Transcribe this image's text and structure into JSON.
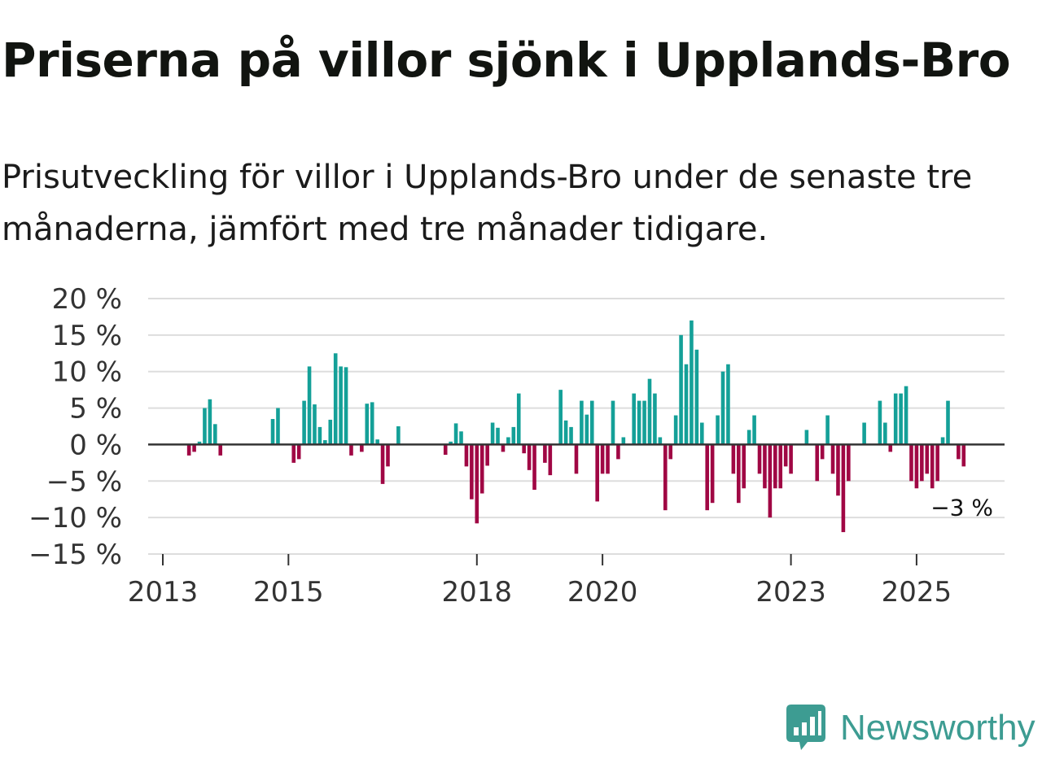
{
  "header": {
    "title": "Priserna på villor sjönk i Upplands-Bro",
    "subtitle": "Prisutveckling för villor i Upplands-Bro under de senaste tre månaderna, jämfört med tre månader tidigare."
  },
  "colors": {
    "positive": "#14a098",
    "negative": "#a00744",
    "grid": "#dddddd",
    "zero_line": "#333333",
    "brand": "#3d9c92"
  },
  "chart_data": {
    "type": "bar",
    "title": "Priserna på villor sjönk i Upplands-Bro",
    "xlabel": "",
    "ylabel": "",
    "ylim": [
      -15,
      20
    ],
    "y_ticks": [
      {
        "value": 20,
        "label": "20 %"
      },
      {
        "value": 15,
        "label": "15 %"
      },
      {
        "value": 10,
        "label": "10 %"
      },
      {
        "value": 5,
        "label": "5 %"
      },
      {
        "value": 0,
        "label": "0 %"
      },
      {
        "value": -5,
        "label": "−5 %"
      },
      {
        "value": -10,
        "label": "−10 %"
      },
      {
        "value": -15,
        "label": "−15 %"
      }
    ],
    "x_range_months": [
      0,
      164
    ],
    "x_ticks": [
      {
        "month": 0,
        "label": "2013"
      },
      {
        "month": 24,
        "label": "2015"
      },
      {
        "month": 60,
        "label": "2018"
      },
      {
        "month": 84,
        "label": "2020"
      },
      {
        "month": 120,
        "label": "2023"
      },
      {
        "month": 144,
        "label": "2025"
      }
    ],
    "x_unit": "months since Jan 2013",
    "values": [
      {
        "m": 5,
        "v": -1.5
      },
      {
        "m": 6,
        "v": -1.0
      },
      {
        "m": 7,
        "v": 0.4
      },
      {
        "m": 8,
        "v": 5.0
      },
      {
        "m": 9,
        "v": 6.2
      },
      {
        "m": 10,
        "v": 2.8
      },
      {
        "m": 11,
        "v": -1.5
      },
      {
        "m": 21,
        "v": 3.5
      },
      {
        "m": 22,
        "v": 5.0
      },
      {
        "m": 25,
        "v": -2.5
      },
      {
        "m": 26,
        "v": -2.0
      },
      {
        "m": 27,
        "v": 6.0
      },
      {
        "m": 28,
        "v": 10.7
      },
      {
        "m": 29,
        "v": 5.5
      },
      {
        "m": 30,
        "v": 2.4
      },
      {
        "m": 31,
        "v": 0.6
      },
      {
        "m": 32,
        "v": 3.4
      },
      {
        "m": 33,
        "v": 12.5
      },
      {
        "m": 34,
        "v": 10.7
      },
      {
        "m": 35,
        "v": 10.6
      },
      {
        "m": 36,
        "v": -1.5
      },
      {
        "m": 38,
        "v": -1.0
      },
      {
        "m": 39,
        "v": 5.6
      },
      {
        "m": 40,
        "v": 5.8
      },
      {
        "m": 41,
        "v": 0.7
      },
      {
        "m": 42,
        "v": -5.4
      },
      {
        "m": 43,
        "v": -3.0
      },
      {
        "m": 45,
        "v": 2.5
      },
      {
        "m": 54,
        "v": -1.4
      },
      {
        "m": 55,
        "v": 0.4
      },
      {
        "m": 56,
        "v": 2.9
      },
      {
        "m": 57,
        "v": 1.8
      },
      {
        "m": 58,
        "v": -3.0
      },
      {
        "m": 59,
        "v": -7.5
      },
      {
        "m": 60,
        "v": -10.8
      },
      {
        "m": 61,
        "v": -6.7
      },
      {
        "m": 62,
        "v": -2.9
      },
      {
        "m": 63,
        "v": 3.0
      },
      {
        "m": 64,
        "v": 2.3
      },
      {
        "m": 65,
        "v": -1.0
      },
      {
        "m": 66,
        "v": 1.0
      },
      {
        "m": 67,
        "v": 2.4
      },
      {
        "m": 68,
        "v": 7.0
      },
      {
        "m": 69,
        "v": -1.2
      },
      {
        "m": 70,
        "v": -3.5
      },
      {
        "m": 71,
        "v": -6.2
      },
      {
        "m": 73,
        "v": -2.5
      },
      {
        "m": 74,
        "v": -4.2
      },
      {
        "m": 76,
        "v": 7.5
      },
      {
        "m": 77,
        "v": 3.3
      },
      {
        "m": 78,
        "v": 2.4
      },
      {
        "m": 79,
        "v": -4.0
      },
      {
        "m": 80,
        "v": 6.0
      },
      {
        "m": 81,
        "v": 4.1
      },
      {
        "m": 82,
        "v": 6.0
      },
      {
        "m": 83,
        "v": -7.8
      },
      {
        "m": 84,
        "v": -4.0
      },
      {
        "m": 85,
        "v": -4.0
      },
      {
        "m": 86,
        "v": 6.0
      },
      {
        "m": 87,
        "v": -2.0
      },
      {
        "m": 88,
        "v": 1.0
      },
      {
        "m": 90,
        "v": 7.0
      },
      {
        "m": 91,
        "v": 6.0
      },
      {
        "m": 92,
        "v": 6.0
      },
      {
        "m": 93,
        "v": 9.0
      },
      {
        "m": 94,
        "v": 7.0
      },
      {
        "m": 95,
        "v": 1.0
      },
      {
        "m": 96,
        "v": -9.0
      },
      {
        "m": 97,
        "v": -2.0
      },
      {
        "m": 98,
        "v": 4.0
      },
      {
        "m": 99,
        "v": 15.0
      },
      {
        "m": 100,
        "v": 11.0
      },
      {
        "m": 101,
        "v": 17.0
      },
      {
        "m": 102,
        "v": 13.0
      },
      {
        "m": 103,
        "v": 3.0
      },
      {
        "m": 104,
        "v": -9.0
      },
      {
        "m": 105,
        "v": -8.0
      },
      {
        "m": 106,
        "v": 4.0
      },
      {
        "m": 107,
        "v": 10.0
      },
      {
        "m": 108,
        "v": 11.0
      },
      {
        "m": 109,
        "v": -4.0
      },
      {
        "m": 110,
        "v": -8.0
      },
      {
        "m": 111,
        "v": -6.0
      },
      {
        "m": 112,
        "v": 2.0
      },
      {
        "m": 113,
        "v": 4.0
      },
      {
        "m": 114,
        "v": -4.0
      },
      {
        "m": 115,
        "v": -6.0
      },
      {
        "m": 116,
        "v": -10.0
      },
      {
        "m": 117,
        "v": -6.0
      },
      {
        "m": 118,
        "v": -6.0
      },
      {
        "m": 119,
        "v": -3.0
      },
      {
        "m": 120,
        "v": -4.0
      },
      {
        "m": 123,
        "v": 2.0
      },
      {
        "m": 125,
        "v": -5.0
      },
      {
        "m": 126,
        "v": -2.0
      },
      {
        "m": 127,
        "v": 4.0
      },
      {
        "m": 128,
        "v": -4.0
      },
      {
        "m": 129,
        "v": -7.0
      },
      {
        "m": 130,
        "v": -12.0
      },
      {
        "m": 131,
        "v": -5.0
      },
      {
        "m": 134,
        "v": 3.0
      },
      {
        "m": 137,
        "v": 6.0
      },
      {
        "m": 138,
        "v": 3.0
      },
      {
        "m": 139,
        "v": -1.0
      },
      {
        "m": 140,
        "v": 7.0
      },
      {
        "m": 141,
        "v": 7.0
      },
      {
        "m": 142,
        "v": 8.0
      },
      {
        "m": 143,
        "v": -5.0
      },
      {
        "m": 144,
        "v": -6.0
      },
      {
        "m": 145,
        "v": -5.0
      },
      {
        "m": 146,
        "v": -4.0
      },
      {
        "m": 147,
        "v": -6.0
      },
      {
        "m": 148,
        "v": -5.0
      },
      {
        "m": 149,
        "v": 1.0
      },
      {
        "m": 150,
        "v": 6.0
      },
      {
        "m": 152,
        "v": -2.0
      },
      {
        "m": 153,
        "v": -3.0
      }
    ],
    "annotations": [
      {
        "label": "−3 %",
        "month": 153,
        "value": -3
      }
    ]
  },
  "branding": {
    "name": "Newsworthy"
  }
}
